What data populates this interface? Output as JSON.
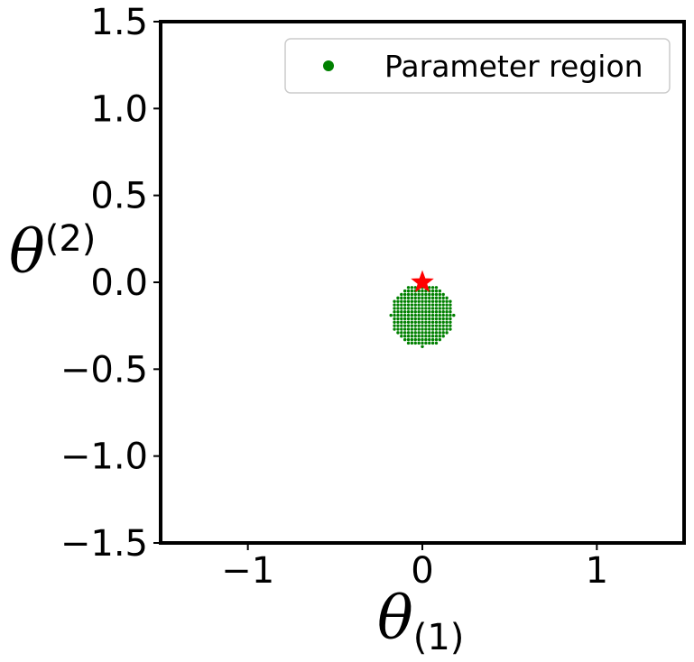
{
  "chart_data": {
    "type": "scatter",
    "xlim": [
      -1.5,
      1.5
    ],
    "ylim": [
      -1.5,
      1.5
    ],
    "x_ticks": [
      -1,
      0,
      1
    ],
    "x_tick_labels": [
      "−1",
      "0",
      "1"
    ],
    "y_ticks": [
      -1.5,
      -1.0,
      -0.5,
      0.0,
      0.5,
      1.0,
      1.5
    ],
    "y_tick_labels": [
      "−1.5",
      "−1.0",
      "−0.5",
      "0.0",
      "0.5",
      "1.0",
      "1.5"
    ],
    "xlabel": {
      "symbol": "θ",
      "subscript": "(1)"
    },
    "ylabel": {
      "symbol": "θ",
      "superscript": "(2)"
    },
    "grid": false,
    "legend": {
      "position": "top-right",
      "entries": [
        {
          "label": "Parameter region",
          "color": "#008000",
          "marker": "circle"
        }
      ]
    },
    "series": [
      {
        "name": "Parameter region",
        "color": "#008000",
        "marker": "circle",
        "region": {
          "center": [
            0.0,
            -0.19
          ],
          "radius": 0.18,
          "grid_step": 0.02
        }
      },
      {
        "color": "#ff0000",
        "marker": "star",
        "points": [
          {
            "x": 0.0,
            "y": 0.0
          }
        ]
      }
    ]
  }
}
